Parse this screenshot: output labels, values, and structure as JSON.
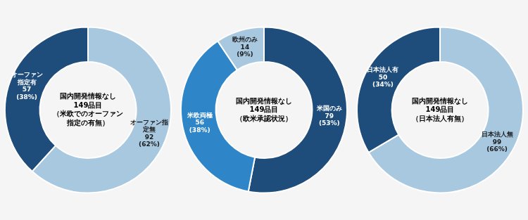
{
  "chart_data": [
    {
      "type": "doughnut",
      "annotations": [
        "国内開発情報なし\n149品目\n（米欧でのオーファン\n指定の有無）"
      ],
      "categories": [
        "オーファン指\n定無",
        "オーファン\n指定有"
      ],
      "values": [
        92,
        57
      ],
      "value_labels": [
        "92\n(62%)",
        "57\n(38%)"
      ],
      "colors": [
        "#a8c8e0",
        "#1e4d7b"
      ],
      "data_labels": true
    },
    {
      "type": "doughnut",
      "annotations": [
        "国内開発情報なし\n149品目\n（欧米承認状況）"
      ],
      "categories": [
        "米国のみ",
        "米欧両極",
        "欧州のみ"
      ],
      "values": [
        79,
        56,
        14
      ],
      "value_labels": [
        "79\n(53%)",
        "56\n(38%)",
        "14\n(9%)"
      ],
      "colors": [
        "#1e4d7b",
        "#2e86c8",
        "#a8c8e0"
      ],
      "data_labels": true
    },
    {
      "type": "doughnut",
      "annotations": [
        "国内開発情報なし\n149品目\n（日本法人有無）"
      ],
      "categories": [
        "日本法人無",
        "日本法人有"
      ],
      "values": [
        99,
        50
      ],
      "value_labels": [
        "99\n(66%)",
        "50\n(34%)"
      ],
      "colors": [
        "#a8c8e0",
        "#1e4d7b"
      ],
      "data_labels": true
    }
  ]
}
